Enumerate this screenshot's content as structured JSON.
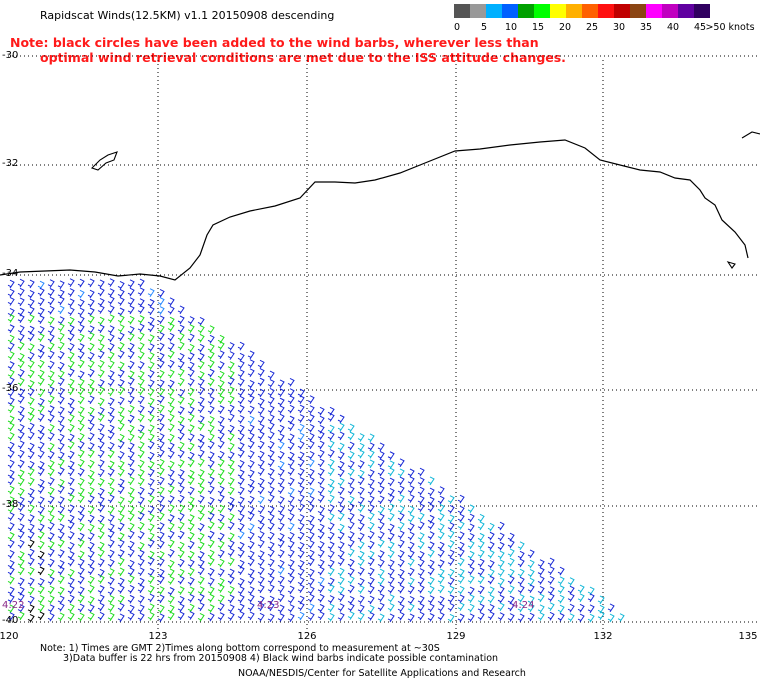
{
  "title": "Rapidscat Winds(12.5KM) v1.1 20150908 descending",
  "note": {
    "line1": "Note: black circles have been added to the wind barbs, wherever less than",
    "line2": "optimal wind retrieval conditions are met due to the ISS attitude changes."
  },
  "scale": {
    "colors": [
      "#555555",
      "#999999",
      "#00b0ff",
      "#0060ff",
      "#00a000",
      "#00ff00",
      "#ffff00",
      "#ffb000",
      "#ff6000",
      "#ff1010",
      "#c00000",
      "#8b4513",
      "#ff00ff",
      "#c000c0",
      "#6000a0",
      "#300060"
    ],
    "labels": [
      "0",
      "5",
      "10",
      "15",
      "20",
      "25",
      "30",
      "35",
      "40",
      "45",
      ">50 knots"
    ]
  },
  "axes": {
    "lon_labels": [
      "120",
      "123",
      "126",
      "129",
      "132",
      "135"
    ],
    "lat_labels": [
      "-30",
      "-32",
      "-34",
      "-36",
      "-38",
      "-40"
    ]
  },
  "times": [
    "4:22",
    "4:23",
    "4:24"
  ],
  "footer": {
    "line1": "Note: 1) Times are GMT 2)Times along bottom correspond to measurement at ~30S",
    "line2": "3)Data buffer is 22 hrs from 20150908 4) Black wind barbs indicate possible contamination",
    "line3": "NOAA/NESDIS/Center for Satellite Applications and Research"
  }
}
